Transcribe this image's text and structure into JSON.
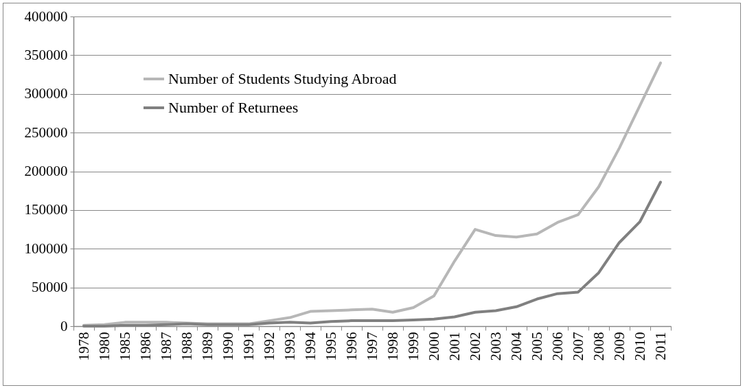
{
  "chart_data": {
    "type": "line",
    "categories": [
      "1978",
      "1980",
      "1985",
      "1986",
      "1987",
      "1988",
      "1989",
      "1990",
      "1991",
      "1992",
      "1993",
      "1994",
      "1995",
      "1996",
      "1997",
      "1998",
      "1999",
      "2000",
      "2001",
      "2002",
      "2003",
      "2004",
      "2005",
      "2006",
      "2007",
      "2008",
      "2009",
      "2010",
      "2011"
    ],
    "series": [
      {
        "name": "Number of Students Studying Abroad",
        "color": "#b7b7b7",
        "values": [
          1000,
          2000,
          5000,
          5000,
          5000,
          4000,
          3000,
          3000,
          3000,
          7000,
          11000,
          19000,
          20000,
          21000,
          22000,
          18000,
          24000,
          39000,
          84000,
          125000,
          117000,
          115000,
          119000,
          134000,
          144000,
          180000,
          230000,
          285000,
          340000
        ]
      },
      {
        "name": "Number of Returnees",
        "color": "#808080",
        "values": [
          0,
          0,
          1000,
          1000,
          2000,
          3000,
          2000,
          2000,
          2000,
          4000,
          5000,
          4000,
          6000,
          7000,
          7000,
          7000,
          8000,
          9000,
          12000,
          18000,
          20000,
          25000,
          35000,
          42000,
          44000,
          69000,
          108000,
          135000,
          186000
        ]
      }
    ],
    "ylim": [
      0,
      400000
    ],
    "yticks": [
      0,
      50000,
      100000,
      150000,
      200000,
      250000,
      300000,
      350000,
      400000
    ],
    "grid": "y",
    "legend": "top left"
  }
}
